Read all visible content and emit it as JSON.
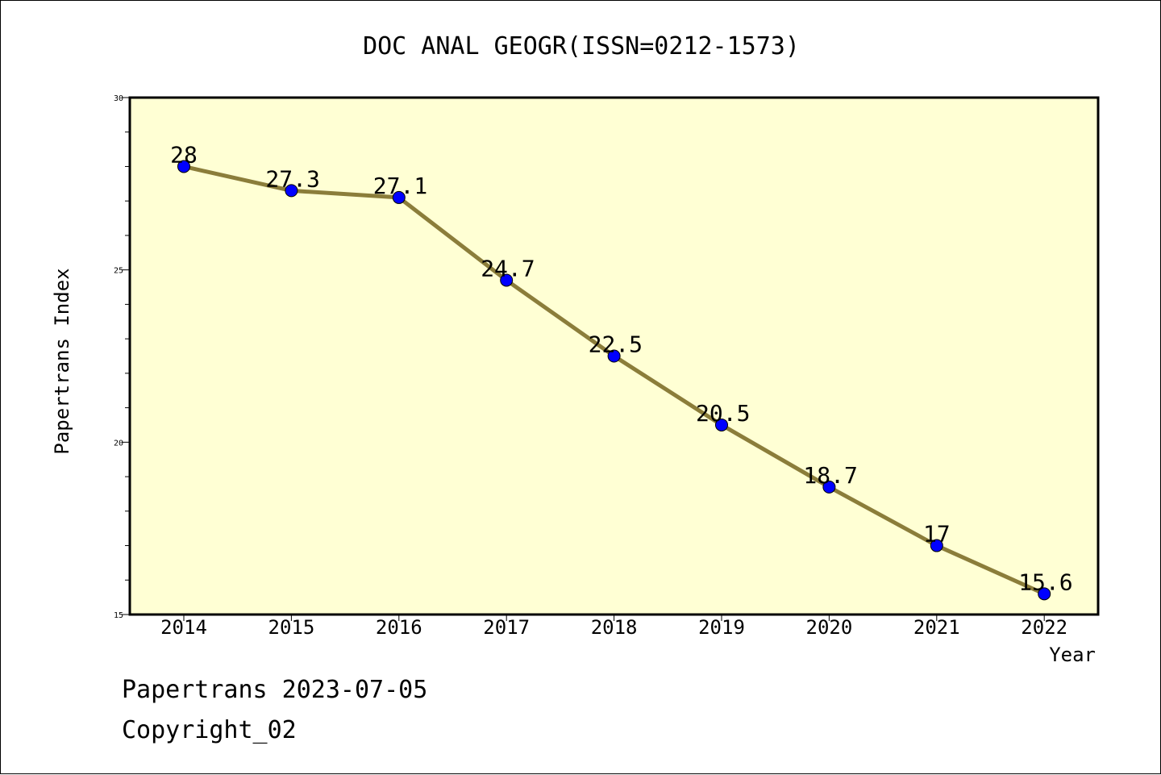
{
  "chart_data": {
    "type": "line",
    "title": "DOC ANAL GEOGR(ISSN=0212-1573)",
    "xlabel": "Year",
    "ylabel": "Papertrans Index",
    "x": [
      "2014",
      "2015",
      "2016",
      "2017",
      "2018",
      "2019",
      "2020",
      "2021",
      "2022"
    ],
    "values": [
      28,
      27.3,
      27.1,
      24.7,
      22.5,
      20.5,
      18.7,
      17,
      15.6
    ],
    "data_labels": [
      "28",
      "27.3",
      "27.1",
      "24.7",
      "22.5",
      "20.5",
      "18.7",
      "17",
      "15.6"
    ],
    "ylim": [
      15,
      30
    ],
    "yticks": [
      "15",
      "20",
      "25",
      "30"
    ],
    "grid": false,
    "colors": {
      "plot_background": "#ffffd4",
      "line": "#8b7d3a",
      "marker": "#0000ff"
    }
  },
  "footer": {
    "line1": "Papertrans 2023-07-05",
    "line2": "Copyright_02"
  }
}
